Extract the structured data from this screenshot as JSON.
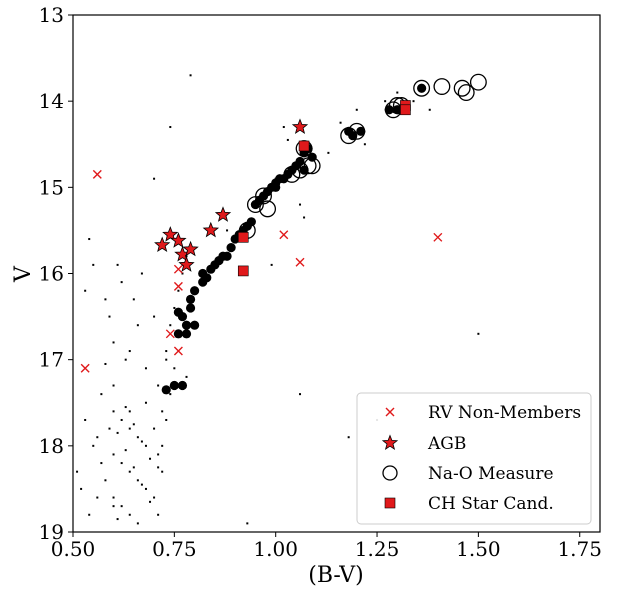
{
  "chart_data": {
    "type": "scatter",
    "xlabel": "(B-V)",
    "ylabel": "V",
    "xlim": [
      0.5,
      1.8
    ],
    "ylim": [
      19,
      13
    ],
    "y_inverted": true,
    "xticks": [
      "0.50",
      "0.75",
      "1.00",
      "1.25",
      "1.50",
      "1.75"
    ],
    "yticks": [
      "13",
      "14",
      "15",
      "16",
      "17",
      "18",
      "19"
    ],
    "grid": false,
    "legend": {
      "placement": "bottom-right"
    },
    "series": [
      {
        "name": "",
        "marker": "dot",
        "color": "#000000",
        "points": [
          [
            0.79,
            13.7
          ],
          [
            0.74,
            14.3
          ],
          [
            0.95,
            15.2
          ],
          [
            0.88,
            15.5
          ],
          [
            0.99,
            15.9
          ],
          [
            0.78,
            17.2
          ],
          [
            0.93,
            18.9
          ],
          [
            1.25,
            17.7
          ],
          [
            1.5,
            16.7
          ],
          [
            1.06,
            17.4
          ],
          [
            1.18,
            17.9
          ],
          [
            0.7,
            14.9
          ],
          [
            1.13,
            14.6
          ],
          [
            1.0,
            14.9
          ],
          [
            1.02,
            14.3
          ],
          [
            1.03,
            14.45
          ],
          [
            1.38,
            14.1
          ],
          [
            1.3,
            13.9
          ],
          [
            1.27,
            14.0
          ],
          [
            1.34,
            14.0
          ],
          [
            1.22,
            14.5
          ],
          [
            1.2,
            14.1
          ],
          [
            1.16,
            14.25
          ],
          [
            1.06,
            15.2
          ],
          [
            1.07,
            15.35
          ],
          [
            0.54,
            15.6
          ],
          [
            0.55,
            15.9
          ],
          [
            0.53,
            16.2
          ],
          [
            0.59,
            16.5
          ],
          [
            0.6,
            16.8
          ],
          [
            0.58,
            17.05
          ],
          [
            0.6,
            17.3
          ],
          [
            0.64,
            17.6
          ],
          [
            0.67,
            16.0
          ],
          [
            0.66,
            16.6
          ],
          [
            0.64,
            16.9
          ],
          [
            0.56,
            17.9
          ],
          [
            0.53,
            17.7
          ],
          [
            0.51,
            18.3
          ],
          [
            0.54,
            18.8
          ],
          [
            0.52,
            18.5
          ],
          [
            0.57,
            18.2
          ],
          [
            0.6,
            18.7
          ],
          [
            0.63,
            17.0
          ],
          [
            0.65,
            16.3
          ],
          [
            0.7,
            16.5
          ],
          [
            0.68,
            17.1
          ],
          [
            0.62,
            16.1
          ],
          [
            0.61,
            15.9
          ],
          [
            0.58,
            16.3
          ],
          [
            0.6,
            17.6
          ],
          [
            0.62,
            17.7
          ],
          [
            0.64,
            17.8
          ],
          [
            0.66,
            17.9
          ],
          [
            0.68,
            18.0
          ],
          [
            0.6,
            18.1
          ],
          [
            0.62,
            18.2
          ],
          [
            0.64,
            18.3
          ],
          [
            0.66,
            18.4
          ],
          [
            0.68,
            18.5
          ],
          [
            0.6,
            18.6
          ],
          [
            0.62,
            18.7
          ],
          [
            0.64,
            18.8
          ],
          [
            0.66,
            18.9
          ],
          [
            0.68,
            17.5
          ],
          [
            0.61,
            17.85
          ],
          [
            0.63,
            18.05
          ],
          [
            0.65,
            18.25
          ],
          [
            0.67,
            18.45
          ],
          [
            0.69,
            18.65
          ],
          [
            0.61,
            18.85
          ],
          [
            0.63,
            17.55
          ],
          [
            0.65,
            17.75
          ],
          [
            0.67,
            17.95
          ],
          [
            0.69,
            18.15
          ],
          [
            0.58,
            18.4
          ],
          [
            0.56,
            18.6
          ],
          [
            0.55,
            18.0
          ],
          [
            0.57,
            17.4
          ],
          [
            0.59,
            17.8
          ],
          [
            0.71,
            17.3
          ],
          [
            0.72,
            17.6
          ],
          [
            0.73,
            17.0
          ],
          [
            0.7,
            17.8
          ],
          [
            0.71,
            18.1
          ],
          [
            0.72,
            18.3
          ],
          [
            0.7,
            18.6
          ],
          [
            0.71,
            18.8
          ],
          [
            0.74,
            16.6
          ],
          [
            0.75,
            16.4
          ],
          [
            0.73,
            16.9
          ],
          [
            0.76,
            16.2
          ],
          [
            0.77,
            16.0
          ],
          [
            0.78,
            15.8
          ],
          [
            0.76,
            16.7
          ],
          [
            0.75,
            17.1
          ],
          [
            0.74,
            17.4
          ],
          [
            0.73,
            17.7
          ],
          [
            0.72,
            18.0
          ],
          [
            0.71,
            18.25
          ]
        ]
      },
      {
        "name": "Na-O Measure",
        "marker": "filled-circle",
        "color": "#000000",
        "points": [
          [
            0.73,
            17.35
          ],
          [
            0.75,
            17.3
          ],
          [
            0.77,
            17.3
          ],
          [
            0.76,
            16.7
          ],
          [
            0.78,
            16.6
          ],
          [
            0.77,
            16.5
          ],
          [
            0.79,
            16.4
          ],
          [
            0.76,
            16.45
          ],
          [
            0.78,
            16.7
          ],
          [
            0.8,
            16.6
          ],
          [
            0.79,
            16.3
          ],
          [
            0.8,
            16.2
          ],
          [
            0.82,
            16.1
          ],
          [
            0.82,
            16.0
          ],
          [
            0.84,
            15.95
          ],
          [
            0.85,
            15.9
          ],
          [
            0.83,
            16.05
          ],
          [
            0.86,
            15.85
          ],
          [
            0.87,
            15.8
          ],
          [
            0.88,
            15.8
          ],
          [
            0.89,
            15.7
          ],
          [
            0.9,
            15.6
          ],
          [
            0.92,
            15.5
          ],
          [
            0.91,
            15.55
          ],
          [
            0.93,
            15.45
          ],
          [
            0.94,
            15.4
          ],
          [
            0.95,
            15.2
          ],
          [
            0.96,
            15.15
          ],
          [
            0.97,
            15.1
          ],
          [
            0.98,
            15.05
          ],
          [
            0.99,
            15.0
          ],
          [
            1.0,
            14.95
          ],
          [
            1.02,
            14.9
          ],
          [
            1.04,
            14.8
          ],
          [
            1.05,
            14.75
          ],
          [
            1.06,
            14.7
          ],
          [
            1.07,
            14.6
          ],
          [
            1.08,
            14.55
          ],
          [
            1.09,
            14.65
          ],
          [
            1.07,
            14.8
          ],
          [
            1.03,
            14.85
          ],
          [
            1.01,
            14.9
          ],
          [
            1.0,
            15.0
          ],
          [
            1.18,
            14.35
          ],
          [
            1.19,
            14.4
          ],
          [
            1.21,
            14.35
          ],
          [
            1.28,
            14.1
          ],
          [
            1.3,
            14.1
          ],
          [
            1.32,
            14.05
          ],
          [
            1.36,
            13.85
          ]
        ]
      },
      {
        "name": "Na-O Measure",
        "marker": "open-circle",
        "color": "#000000",
        "points": [
          [
            0.95,
            15.2
          ],
          [
            0.97,
            15.1
          ],
          [
            0.98,
            15.25
          ],
          [
            0.93,
            15.5
          ],
          [
            1.04,
            14.85
          ],
          [
            1.06,
            14.8
          ],
          [
            1.07,
            14.55
          ],
          [
            1.08,
            14.75
          ],
          [
            1.09,
            14.75
          ],
          [
            1.18,
            14.4
          ],
          [
            1.2,
            14.35
          ],
          [
            1.29,
            14.1
          ],
          [
            1.3,
            14.05
          ],
          [
            1.31,
            14.05
          ],
          [
            1.36,
            13.85
          ],
          [
            1.41,
            13.83
          ],
          [
            1.46,
            13.85
          ],
          [
            1.47,
            13.9
          ],
          [
            1.5,
            13.78
          ]
        ]
      },
      {
        "name": "RV Non-Members",
        "marker": "x",
        "color": "#e0191b",
        "points": [
          [
            0.56,
            14.85
          ],
          [
            0.53,
            17.1
          ],
          [
            0.76,
            16.15
          ],
          [
            0.74,
            16.7
          ],
          [
            0.76,
            16.9
          ],
          [
            0.76,
            15.95
          ],
          [
            1.02,
            15.55
          ],
          [
            1.06,
            15.87
          ],
          [
            1.4,
            15.58
          ]
        ]
      },
      {
        "name": "AGB",
        "marker": "star",
        "color": "#e0191b",
        "points": [
          [
            0.72,
            15.67
          ],
          [
            0.74,
            15.55
          ],
          [
            0.76,
            15.62
          ],
          [
            0.77,
            15.78
          ],
          [
            0.78,
            15.9
          ],
          [
            0.79,
            15.72
          ],
          [
            0.84,
            15.5
          ],
          [
            0.87,
            15.32
          ],
          [
            1.06,
            14.3
          ]
        ]
      },
      {
        "name": "CH Star Cand.",
        "marker": "square",
        "color": "#e0191b",
        "points": [
          [
            0.92,
            15.58
          ],
          [
            0.92,
            15.97
          ],
          [
            1.07,
            14.52
          ],
          [
            1.32,
            14.05
          ],
          [
            1.32,
            14.1
          ]
        ]
      }
    ],
    "legend_entries": [
      {
        "label": "RV Non-Members",
        "marker": "x",
        "color": "#e0191b"
      },
      {
        "label": "AGB",
        "marker": "star",
        "color": "#e0191b"
      },
      {
        "label": "Na-O Measure",
        "marker": "open-circle",
        "color": "#000000"
      },
      {
        "label": "CH Star Cand.",
        "marker": "square",
        "color": "#e0191b"
      }
    ]
  }
}
